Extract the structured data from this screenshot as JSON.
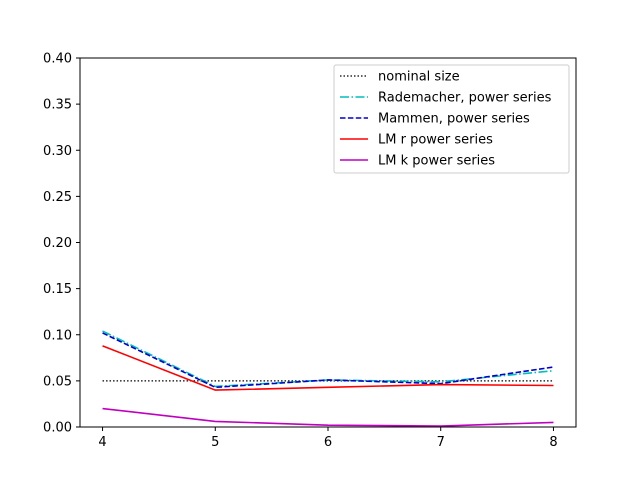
{
  "chart_data": {
    "type": "line",
    "title": "",
    "xlabel": "",
    "ylabel": "",
    "x": [
      4,
      5,
      6,
      7,
      8
    ],
    "xlim": [
      3.8,
      8.2
    ],
    "ylim": [
      0.0,
      0.4
    ],
    "xticks": [
      4,
      5,
      6,
      7,
      8
    ],
    "yticks": [
      0.0,
      0.05,
      0.1,
      0.15,
      0.2,
      0.25,
      0.3,
      0.35,
      0.4
    ],
    "ytick_labels": [
      "0.00",
      "0.05",
      "0.10",
      "0.15",
      "0.20",
      "0.25",
      "0.30",
      "0.35",
      "0.40"
    ],
    "grid": false,
    "legend_position": "top-right",
    "series": [
      {
        "name": "nominal size",
        "values": [
          0.05,
          0.05,
          0.05,
          0.05,
          0.05
        ],
        "color": "#000000",
        "style": "dotted"
      },
      {
        "name": "Rademacher, power series",
        "values": [
          0.104,
          0.044,
          0.051,
          0.049,
          0.061
        ],
        "color": "#00bfbf",
        "style": "dashdot"
      },
      {
        "name": "Mammen, power series",
        "values": [
          0.102,
          0.043,
          0.051,
          0.047,
          0.065
        ],
        "color": "#0000cc",
        "style": "dashed"
      },
      {
        "name": "LM r power series",
        "values": [
          0.088,
          0.04,
          0.043,
          0.046,
          0.045
        ],
        "color": "#ff0000",
        "style": "solid"
      },
      {
        "name": "LM k power series",
        "values": [
          0.02,
          0.006,
          0.002,
          0.001,
          0.005
        ],
        "color": "#bf00bf",
        "style": "solid"
      }
    ]
  }
}
